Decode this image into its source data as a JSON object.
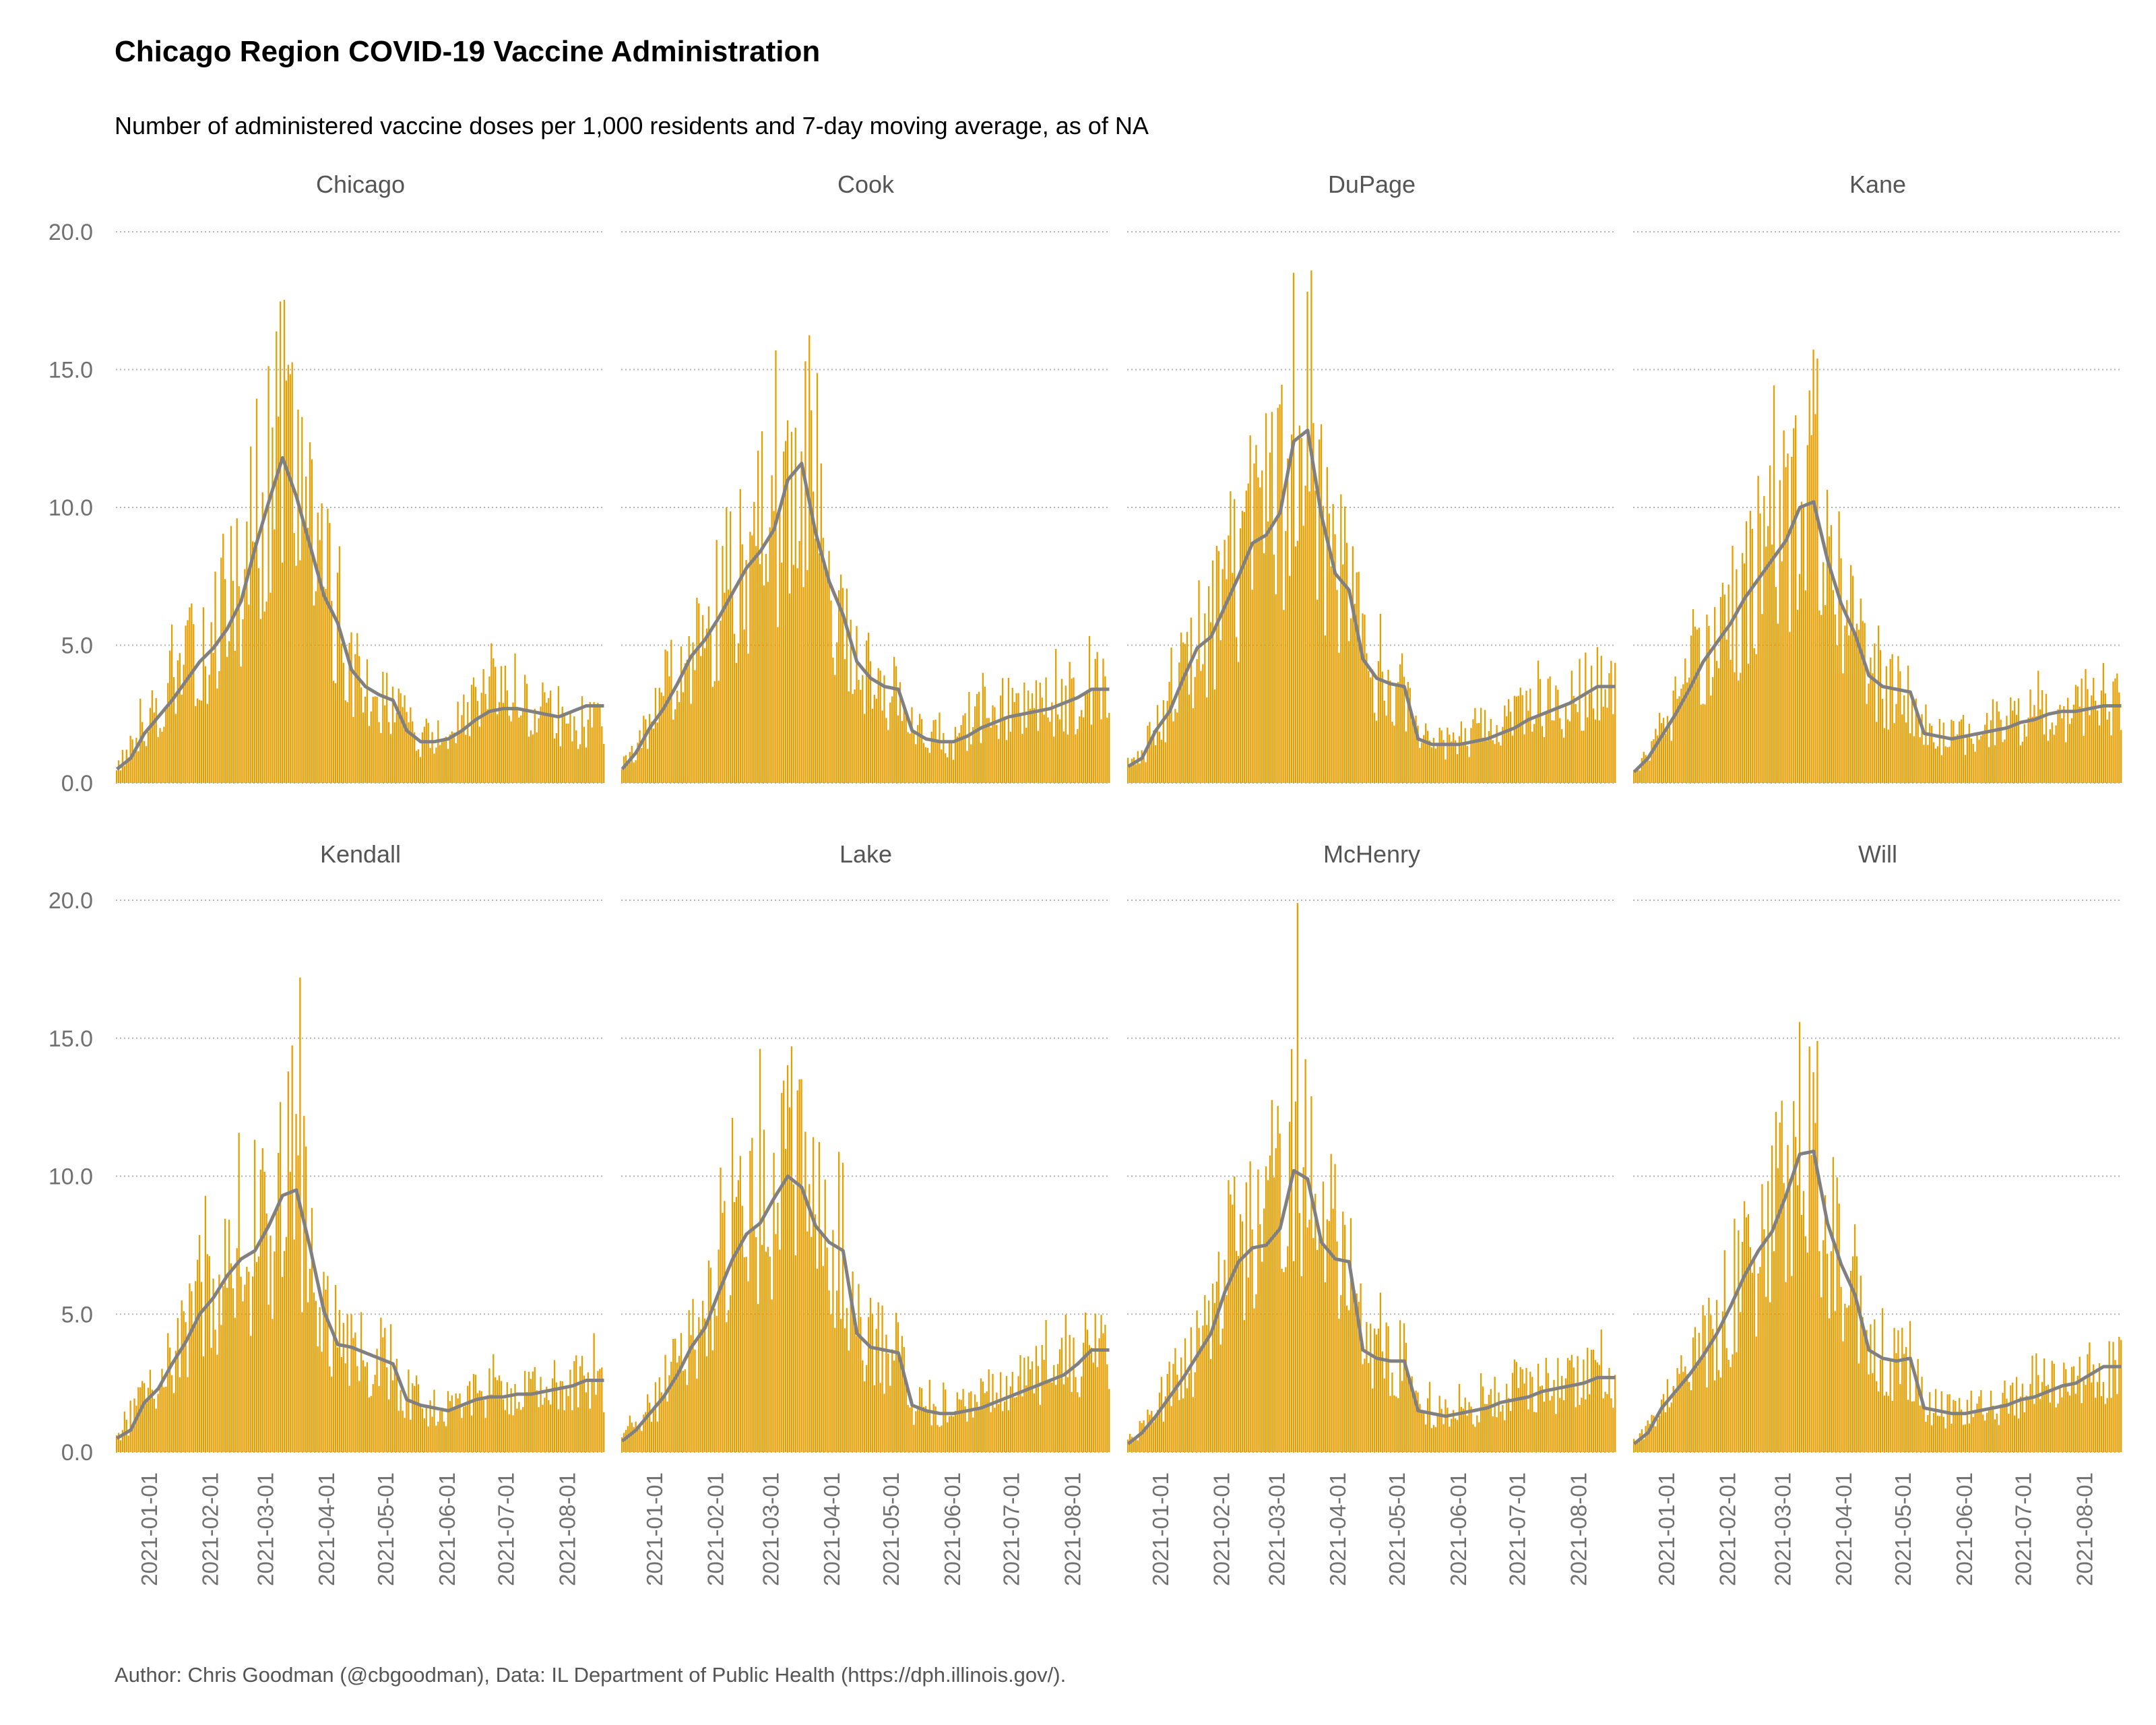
{
  "title": "Chicago Region COVID-19 Vaccine Administration",
  "subtitle": "Number of administered vaccine doses per 1,000 residents and 7-day moving average, as of NA",
  "caption": "Author: Chris Goodman (@cbgoodman), Data: IL Department of Public Health (https://dph.illinois.gov/).",
  "colors": {
    "bar": "#E69F00",
    "line": "#808080",
    "grid": "#b3b3b3",
    "axis_text": "#707070"
  },
  "chart_data": {
    "type": "bar",
    "facet": "small-multiples",
    "ylim": [
      0,
      20
    ],
    "y_ticks": [
      "0.0",
      "5.0",
      "10.0",
      "15.0",
      "20.0"
    ],
    "x_range": [
      "2020-12-15",
      "2021-08-20"
    ],
    "x_ticks": [
      "2021-01-01",
      "2021-02-01",
      "2021-03-01",
      "2021-04-01",
      "2021-05-01",
      "2021-06-01",
      "2021-07-01",
      "2021-08-01"
    ],
    "x_tick_days": [
      17,
      48,
      76,
      107,
      137,
      168,
      198,
      229
    ],
    "grid": true,
    "sample_interval_days": 7,
    "panels": [
      {
        "name": "Chicago",
        "peak": 14.6,
        "bars": [
          0.6,
          1.2,
          2.2,
          2.8,
          3.5,
          4.2,
          4.9,
          5.4,
          6.3,
          7.6,
          9.6,
          11.1,
          12.6,
          11.2,
          9.2,
          7.4,
          6.3,
          4.3,
          3.5,
          3.3,
          3.1,
          2.1,
          1.7,
          1.6,
          1.7,
          2.2,
          2.8,
          3.0,
          3.1,
          2.9,
          2.6,
          2.4,
          2.2,
          2.1,
          2.2
        ],
        "avg": [
          0.5,
          0.9,
          1.8,
          2.4,
          3.0,
          3.7,
          4.4,
          4.9,
          5.6,
          6.6,
          8.5,
          10.2,
          11.8,
          10.4,
          8.6,
          6.8,
          5.8,
          4.1,
          3.5,
          3.2,
          3.0,
          1.9,
          1.5,
          1.5,
          1.6,
          1.9,
          2.3,
          2.6,
          2.7,
          2.7,
          2.6,
          2.5,
          2.4,
          2.6,
          2.8
        ]
      },
      {
        "name": "Cook",
        "peak": 15.3,
        "bars": [
          0.6,
          1.3,
          2.2,
          3.1,
          4.0,
          5.0,
          5.6,
          6.4,
          7.3,
          8.2,
          8.8,
          9.6,
          11.3,
          12.0,
          9.5,
          7.6,
          6.3,
          4.4,
          3.8,
          3.5,
          3.4,
          2.0,
          1.7,
          1.6,
          1.5,
          1.9,
          2.4,
          2.6,
          2.8,
          2.9,
          2.9,
          2.9,
          3.0,
          3.1,
          3.3
        ],
        "avg": [
          0.5,
          1.1,
          2.0,
          2.7,
          3.6,
          4.6,
          5.2,
          6.0,
          6.9,
          7.8,
          8.4,
          9.2,
          11.0,
          11.6,
          9.1,
          7.3,
          6.1,
          4.4,
          3.8,
          3.5,
          3.4,
          1.9,
          1.6,
          1.5,
          1.5,
          1.7,
          2.0,
          2.2,
          2.4,
          2.5,
          2.6,
          2.7,
          2.9,
          3.1,
          3.4
        ]
      },
      {
        "name": "DuPage",
        "peak": 18.6,
        "bars": [
          0.7,
          1.1,
          2.0,
          2.9,
          4.1,
          5.2,
          5.6,
          6.7,
          7.8,
          9.0,
          9.3,
          10.1,
          12.6,
          13.1,
          10.0,
          7.9,
          7.2,
          4.6,
          3.9,
          3.7,
          3.5,
          1.7,
          1.5,
          1.5,
          1.5,
          1.6,
          1.9,
          2.1,
          2.4,
          2.6,
          2.7,
          2.8,
          3.0,
          3.2,
          3.5
        ],
        "avg": [
          0.6,
          0.9,
          1.9,
          2.6,
          3.8,
          4.9,
          5.3,
          6.4,
          7.5,
          8.7,
          9.0,
          9.8,
          12.4,
          12.8,
          9.7,
          7.6,
          7.0,
          4.5,
          3.8,
          3.6,
          3.5,
          1.6,
          1.4,
          1.4,
          1.4,
          1.5,
          1.6,
          1.8,
          2.0,
          2.3,
          2.5,
          2.7,
          2.9,
          3.2,
          3.5
        ]
      },
      {
        "name": "Kane",
        "peak": 15.4,
        "bars": [
          0.5,
          1.0,
          1.9,
          2.8,
          3.7,
          4.7,
          5.4,
          6.1,
          7.0,
          7.8,
          8.4,
          9.1,
          10.3,
          10.5,
          8.4,
          6.7,
          5.6,
          4.0,
          3.6,
          3.4,
          3.2,
          1.8,
          1.7,
          1.6,
          1.7,
          1.9,
          2.1,
          2.3,
          2.4,
          2.5,
          2.6,
          2.6,
          2.7,
          2.8,
          2.9
        ],
        "avg": [
          0.4,
          0.9,
          1.7,
          2.5,
          3.4,
          4.4,
          5.1,
          5.8,
          6.7,
          7.4,
          8.1,
          8.8,
          10.0,
          10.2,
          8.1,
          6.5,
          5.4,
          3.9,
          3.5,
          3.4,
          3.3,
          1.8,
          1.7,
          1.6,
          1.7,
          1.8,
          1.9,
          2.0,
          2.2,
          2.3,
          2.5,
          2.6,
          2.6,
          2.7,
          2.8
        ]
      },
      {
        "name": "Kendall",
        "peak": 17.2,
        "bars": [
          0.6,
          1.1,
          2.0,
          2.6,
          3.4,
          4.3,
          5.2,
          5.9,
          6.6,
          7.2,
          7.6,
          8.4,
          9.5,
          9.7,
          7.6,
          5.3,
          4.0,
          3.9,
          3.6,
          3.4,
          3.2,
          1.9,
          1.7,
          1.6,
          1.6,
          1.8,
          2.0,
          2.2,
          2.3,
          2.3,
          2.3,
          2.4,
          2.4,
          2.5,
          2.6
        ],
        "avg": [
          0.5,
          0.8,
          1.8,
          2.3,
          3.2,
          4.0,
          5.0,
          5.6,
          6.4,
          7.0,
          7.3,
          8.2,
          9.3,
          9.5,
          7.4,
          5.1,
          3.9,
          3.8,
          3.6,
          3.4,
          3.2,
          1.9,
          1.7,
          1.6,
          1.5,
          1.7,
          1.9,
          2.0,
          2.0,
          2.1,
          2.1,
          2.2,
          2.3,
          2.4,
          2.6
        ]
      },
      {
        "name": "Lake",
        "peak": 14.7,
        "bars": [
          0.5,
          1.0,
          1.6,
          2.3,
          3.1,
          4.1,
          4.8,
          6.1,
          7.3,
          8.2,
          8.6,
          9.5,
          10.3,
          9.9,
          8.5,
          7.8,
          7.5,
          4.4,
          3.9,
          3.7,
          3.6,
          1.8,
          1.6,
          1.5,
          1.5,
          1.6,
          1.8,
          2.0,
          2.2,
          2.5,
          2.7,
          2.9,
          3.1,
          3.4,
          3.7
        ],
        "avg": [
          0.4,
          0.8,
          1.4,
          2.0,
          2.8,
          3.8,
          4.5,
          5.8,
          7.0,
          7.9,
          8.3,
          9.2,
          10.0,
          9.6,
          8.2,
          7.6,
          7.3,
          4.3,
          3.8,
          3.7,
          3.6,
          1.7,
          1.5,
          1.4,
          1.4,
          1.5,
          1.6,
          1.8,
          2.0,
          2.2,
          2.4,
          2.6,
          2.8,
          3.2,
          3.7
        ]
      },
      {
        "name": "McHenry",
        "peak": 19.9,
        "bars": [
          0.4,
          0.9,
          1.6,
          2.3,
          3.0,
          3.8,
          4.6,
          6.1,
          7.2,
          7.7,
          7.8,
          8.4,
          10.4,
          10.2,
          7.9,
          7.3,
          7.1,
          3.8,
          3.5,
          3.4,
          3.3,
          1.6,
          1.5,
          1.4,
          1.5,
          1.6,
          1.8,
          2.0,
          2.2,
          2.3,
          2.4,
          2.4,
          2.5,
          2.6,
          2.7
        ],
        "avg": [
          0.3,
          0.7,
          1.3,
          2.0,
          2.7,
          3.5,
          4.3,
          5.8,
          6.9,
          7.4,
          7.5,
          8.1,
          10.2,
          9.9,
          7.6,
          7.0,
          6.9,
          3.7,
          3.4,
          3.3,
          3.3,
          1.5,
          1.4,
          1.3,
          1.4,
          1.5,
          1.6,
          1.8,
          1.9,
          2.0,
          2.2,
          2.3,
          2.4,
          2.5,
          2.7
        ]
      },
      {
        "name": "Will",
        "peak": 14.9,
        "bars": [
          0.4,
          0.9,
          1.8,
          2.5,
          3.1,
          3.8,
          4.6,
          5.6,
          6.7,
          7.6,
          8.3,
          9.6,
          11.0,
          11.1,
          8.6,
          7.0,
          5.9,
          3.8,
          3.4,
          3.3,
          3.3,
          1.7,
          1.6,
          1.5,
          1.5,
          1.6,
          1.7,
          1.9,
          2.0,
          2.2,
          2.4,
          2.5,
          2.6,
          2.8,
          3.1
        ],
        "avg": [
          0.3,
          0.7,
          1.6,
          2.2,
          2.8,
          3.5,
          4.3,
          5.3,
          6.4,
          7.3,
          8.0,
          9.3,
          10.8,
          10.9,
          8.3,
          6.8,
          5.7,
          3.7,
          3.4,
          3.3,
          3.4,
          1.6,
          1.5,
          1.4,
          1.4,
          1.5,
          1.6,
          1.7,
          1.9,
          2.0,
          2.2,
          2.4,
          2.5,
          2.8,
          3.1
        ]
      }
    ]
  }
}
